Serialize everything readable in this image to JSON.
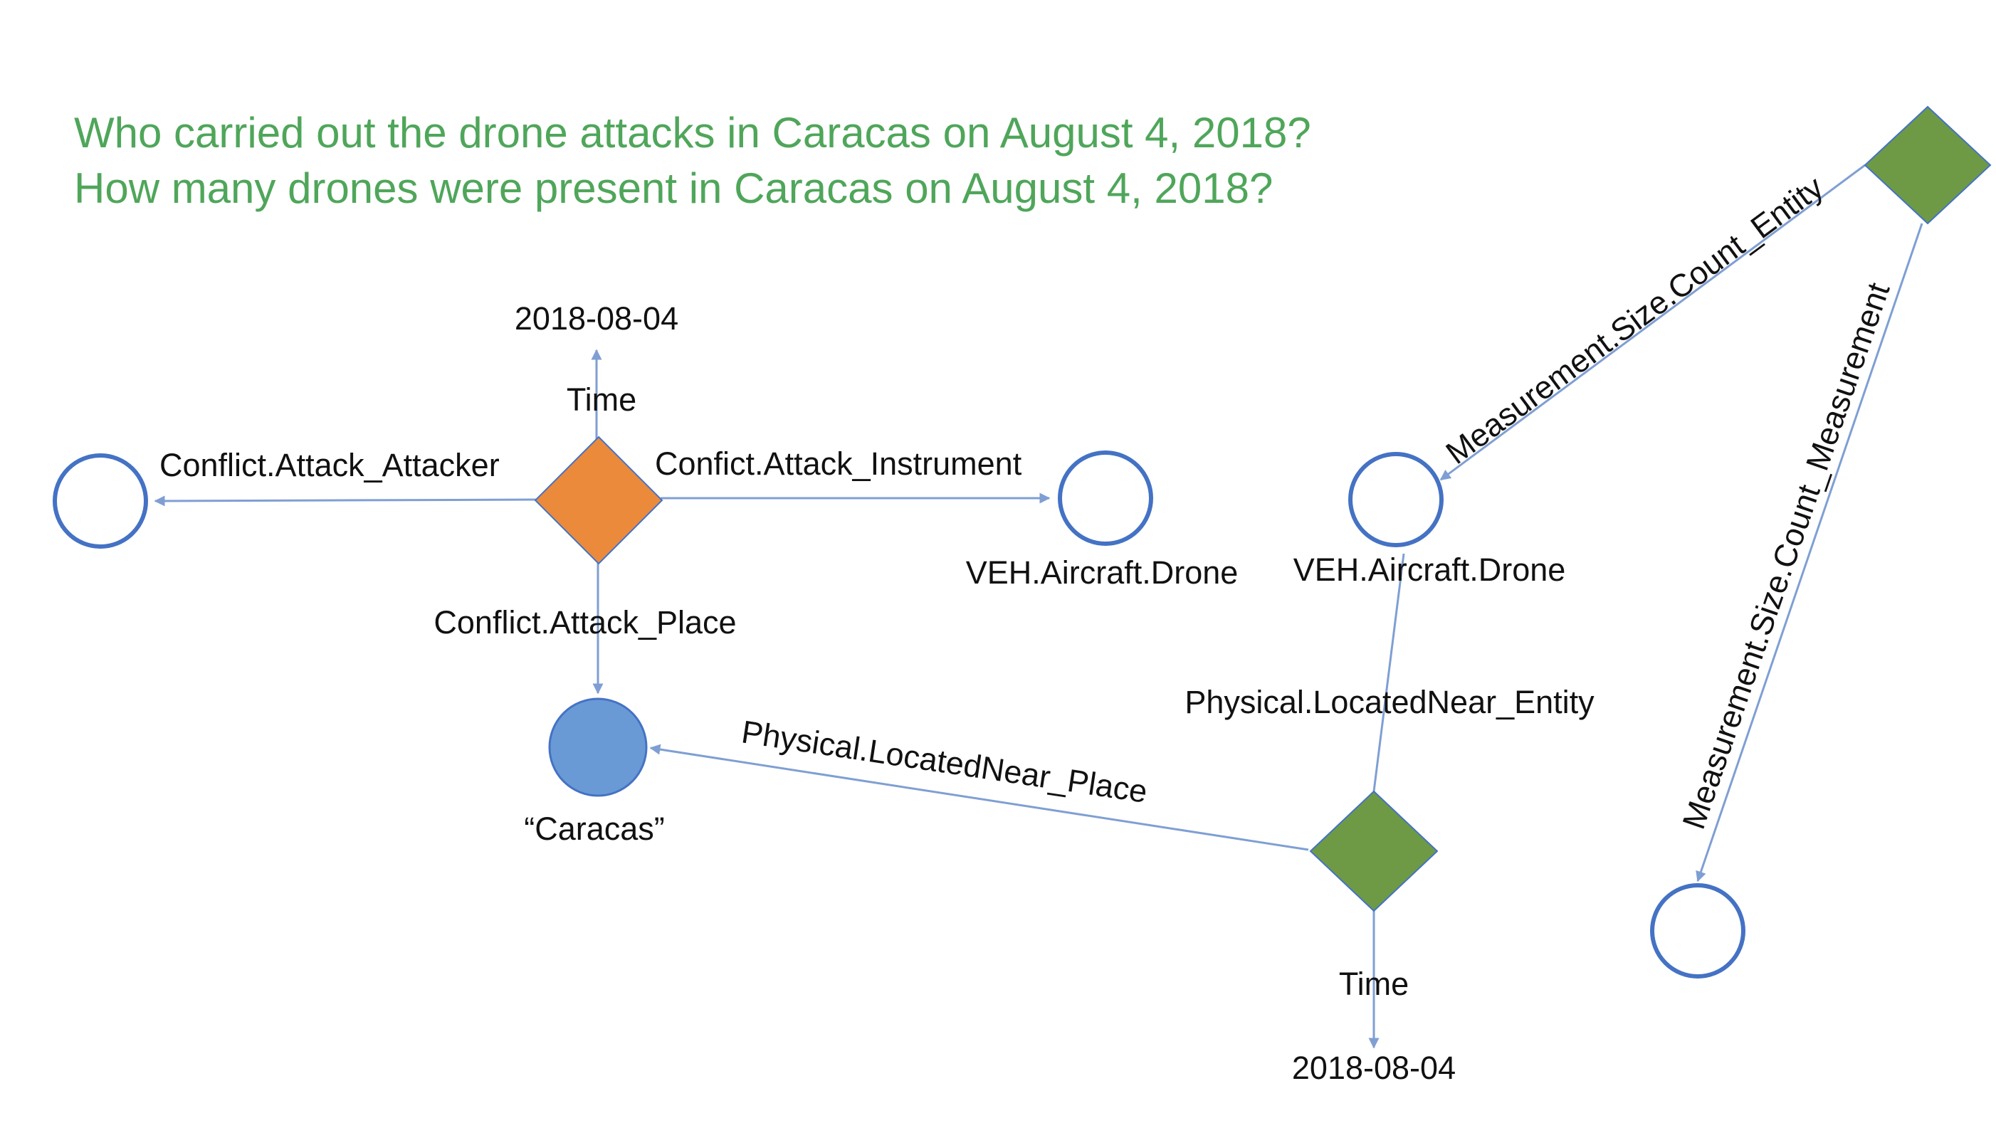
{
  "questions": {
    "line1": "Who carried out the drone attacks in Caracas on August 4, 2018?",
    "line2": "How many drones were present in Caracas on August 4, 2018?"
  },
  "colors": {
    "question_text": "#4fa65a",
    "attack_event": "#ec8a3c",
    "located_event": "#6e9a45",
    "measurement_event": "#6e9a45",
    "filled_entity": "#6a9ad6",
    "entity_outline": "#4472c4",
    "edge": "#7f9fd3"
  },
  "diagram": {
    "attack_event": {
      "time_label": "Time",
      "time_value": "2018-08-04",
      "attacker_label": "Conflict.Attack_Attacker",
      "instrument_label": "Confict.Attack_Instrument",
      "place_label": "Conflict.Attack_Place",
      "instrument_type": "VEH.Aircraft.Drone"
    },
    "place_entity": {
      "name": "“Caracas”"
    },
    "located_event": {
      "entity_label": "Physical.LocatedNear_Entity",
      "place_label": "Physical.LocatedNear_Place",
      "time_label": "Time",
      "time_value": "2018-08-04",
      "entity_type": "VEH.Aircraft.Drone"
    },
    "measurement_event": {
      "entity_label": "Measurement.Size.Count_Entity",
      "measurement_label": "Measurement.Size.Count_Measurement"
    }
  }
}
